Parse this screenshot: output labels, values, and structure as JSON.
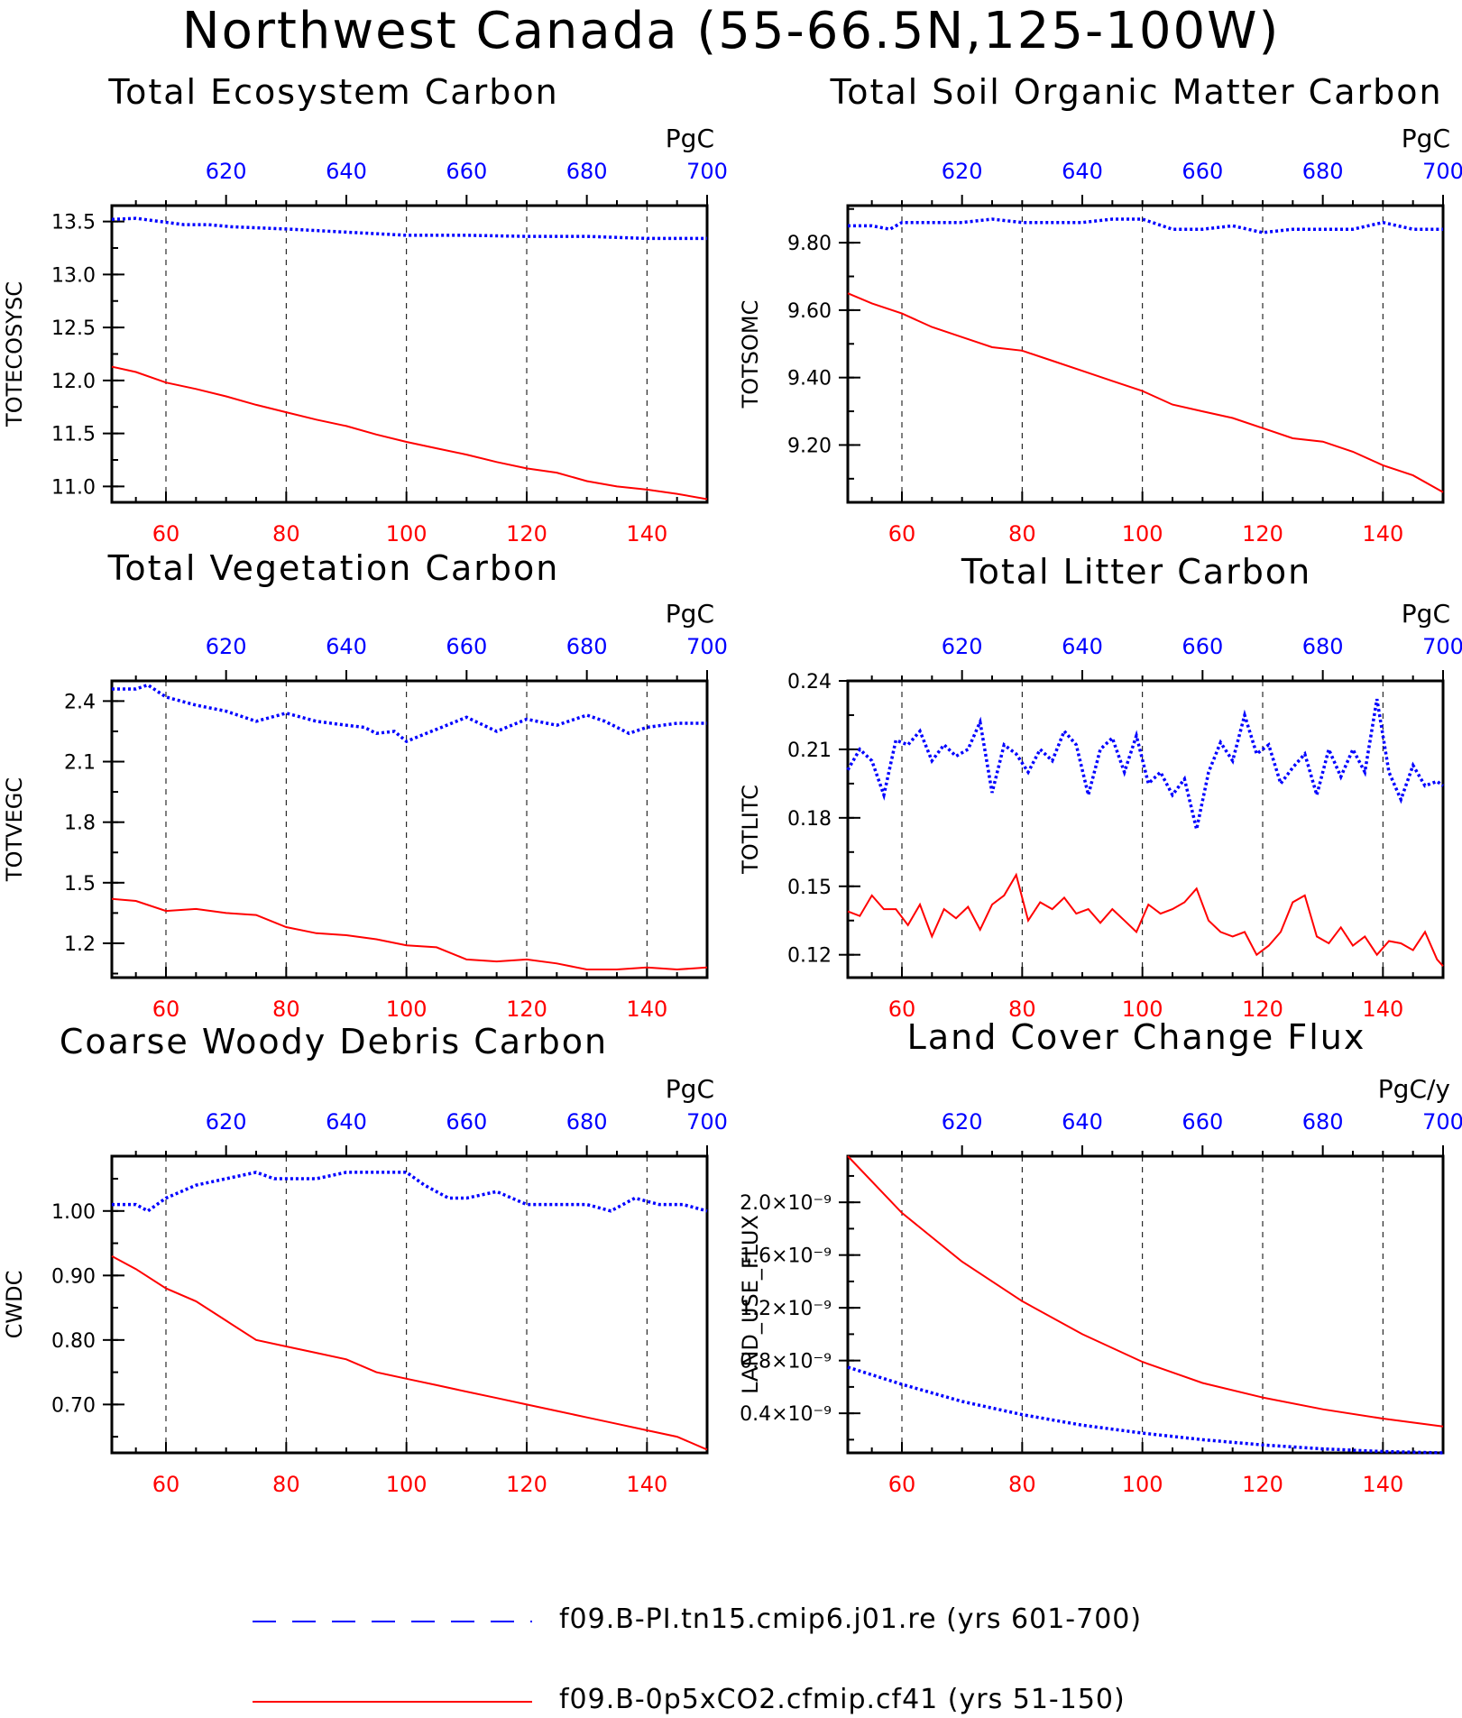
{
  "title": "Northwest Canada (55-66.5N,125-100W)",
  "colors": {
    "ctrl": "#0000ff",
    "exp": "#ff0000"
  },
  "legend": [
    {
      "label": "f09.B-PI.tn15.cmip6.j01.re (yrs 601-700)",
      "color": "#0000ff",
      "style": "dashed"
    },
    {
      "label": "f09.B-0p5xCO2.cfmip.cf41 (yrs 51-150)",
      "color": "#ff0000",
      "style": "solid"
    }
  ],
  "chart_data": [
    {
      "type": "line",
      "title": "Total Ecosystem Carbon",
      "ylabel": "TOTECOSYSC",
      "units": "PgC",
      "ylim": [
        10.85,
        13.65
      ],
      "yticks": [
        11.0,
        11.5,
        12.0,
        12.5,
        13.0,
        13.5
      ],
      "ytick_labels": [
        "11.0",
        "11.5",
        "12.0",
        "12.5",
        "13.0",
        "13.5"
      ],
      "xlim_bottom": [
        51,
        150
      ],
      "xticks_bottom": [
        "60",
        "80",
        "100",
        "120",
        "140"
      ],
      "xlim_top": [
        601,
        700
      ],
      "xticks_top": [
        "620",
        "640",
        "660",
        "680",
        "700"
      ],
      "series": [
        {
          "color": "#0000ff",
          "style": "dotted",
          "x": [
            601,
            605,
            609,
            613,
            617,
            621,
            630,
            640,
            650,
            660,
            670,
            680,
            690,
            700
          ],
          "y": [
            13.52,
            13.53,
            13.5,
            13.47,
            13.47,
            13.45,
            13.43,
            13.4,
            13.37,
            13.37,
            13.36,
            13.36,
            13.34,
            13.34
          ]
        },
        {
          "color": "#ff0000",
          "style": "solid",
          "x": [
            51,
            55,
            60,
            65,
            70,
            75,
            80,
            85,
            90,
            95,
            100,
            105,
            110,
            115,
            120,
            125,
            130,
            135,
            140,
            145,
            150
          ],
          "y": [
            12.13,
            12.08,
            11.98,
            11.92,
            11.85,
            11.77,
            11.7,
            11.63,
            11.57,
            11.49,
            11.42,
            11.36,
            11.3,
            11.23,
            11.17,
            11.13,
            11.05,
            11.0,
            10.97,
            10.93,
            10.88
          ]
        }
      ]
    },
    {
      "type": "line",
      "title": "Total Soil Organic Matter Carbon",
      "ylabel": "TOTSOMC",
      "units": "PgC",
      "ylim": [
        9.03,
        9.91
      ],
      "yticks": [
        9.2,
        9.4,
        9.6,
        9.8
      ],
      "ytick_labels": [
        "9.20",
        "9.40",
        "9.60",
        "9.80"
      ],
      "xlim_bottom": [
        51,
        150
      ],
      "xticks_bottom": [
        "60",
        "80",
        "100",
        "120",
        "140"
      ],
      "xlim_top": [
        601,
        700
      ],
      "xticks_top": [
        "620",
        "640",
        "660",
        "680",
        "700"
      ],
      "series": [
        {
          "color": "#0000ff",
          "style": "dotted",
          "x": [
            601,
            605,
            608,
            610,
            615,
            620,
            625,
            630,
            635,
            640,
            645,
            650,
            655,
            660,
            665,
            670,
            675,
            680,
            685,
            690,
            695,
            700
          ],
          "y": [
            9.85,
            9.85,
            9.84,
            9.86,
            9.86,
            9.86,
            9.87,
            9.86,
            9.86,
            9.86,
            9.87,
            9.87,
            9.84,
            9.84,
            9.85,
            9.83,
            9.84,
            9.84,
            9.84,
            9.86,
            9.84,
            9.84
          ]
        },
        {
          "color": "#ff0000",
          "style": "solid",
          "x": [
            51,
            55,
            60,
            65,
            70,
            75,
            80,
            85,
            90,
            95,
            100,
            105,
            110,
            115,
            120,
            125,
            130,
            135,
            140,
            145,
            150
          ],
          "y": [
            9.65,
            9.62,
            9.59,
            9.55,
            9.52,
            9.49,
            9.48,
            9.45,
            9.42,
            9.39,
            9.36,
            9.32,
            9.3,
            9.28,
            9.25,
            9.22,
            9.21,
            9.18,
            9.14,
            9.11,
            9.06
          ]
        }
      ]
    },
    {
      "type": "line",
      "title": "Total Vegetation Carbon",
      "ylabel": "TOTVEGC",
      "units": "PgC",
      "ylim": [
        1.03,
        2.5
      ],
      "yticks": [
        1.2,
        1.5,
        1.8,
        2.1,
        2.4
      ],
      "ytick_labels": [
        "1.2",
        "1.5",
        "1.8",
        "2.1",
        "2.4"
      ],
      "xlim_bottom": [
        51,
        150
      ],
      "xticks_bottom": [
        "60",
        "80",
        "100",
        "120",
        "140"
      ],
      "xlim_top": [
        601,
        700
      ],
      "xticks_top": [
        "620",
        "640",
        "660",
        "680",
        "700"
      ],
      "series": [
        {
          "color": "#0000ff",
          "style": "dotted",
          "x": [
            601,
            605,
            607,
            610,
            615,
            620,
            625,
            630,
            635,
            640,
            643,
            645,
            648,
            650,
            655,
            660,
            665,
            670,
            675,
            680,
            683,
            687,
            690,
            695,
            700
          ],
          "y": [
            2.46,
            2.46,
            2.48,
            2.42,
            2.38,
            2.35,
            2.3,
            2.34,
            2.3,
            2.28,
            2.27,
            2.24,
            2.25,
            2.2,
            2.26,
            2.32,
            2.25,
            2.31,
            2.28,
            2.33,
            2.3,
            2.24,
            2.27,
            2.29,
            2.29
          ]
        },
        {
          "color": "#ff0000",
          "style": "solid",
          "x": [
            51,
            55,
            60,
            65,
            70,
            75,
            80,
            85,
            90,
            95,
            100,
            105,
            110,
            115,
            120,
            125,
            130,
            135,
            140,
            145,
            150
          ],
          "y": [
            1.42,
            1.41,
            1.36,
            1.37,
            1.35,
            1.34,
            1.28,
            1.25,
            1.24,
            1.22,
            1.19,
            1.18,
            1.12,
            1.11,
            1.12,
            1.1,
            1.07,
            1.07,
            1.08,
            1.07,
            1.08
          ]
        }
      ]
    },
    {
      "type": "line",
      "title": "Total Litter Carbon",
      "ylabel": "TOTLITC",
      "units": "PgC",
      "ylim": [
        0.11,
        0.24
      ],
      "yticks": [
        0.12,
        0.15,
        0.18,
        0.21,
        0.24
      ],
      "ytick_labels": [
        "0.12",
        "0.15",
        "0.18",
        "0.21",
        "0.24"
      ],
      "xlim_bottom": [
        51,
        150
      ],
      "xticks_bottom": [
        "60",
        "80",
        "100",
        "120",
        "140"
      ],
      "xlim_top": [
        601,
        700
      ],
      "xticks_top": [
        "620",
        "640",
        "660",
        "680",
        "700"
      ],
      "series": [
        {
          "color": "#0000ff",
          "style": "dotted",
          "x": [
            601,
            603,
            605,
            607,
            609,
            611,
            613,
            615,
            617,
            619,
            621,
            623,
            625,
            627,
            629,
            631,
            633,
            635,
            637,
            639,
            641,
            643,
            645,
            647,
            649,
            651,
            653,
            655,
            657,
            659,
            661,
            663,
            665,
            667,
            669,
            671,
            673,
            675,
            677,
            679,
            681,
            683,
            685,
            687,
            689,
            691,
            693,
            695,
            697,
            699,
            700
          ],
          "y": [
            0.201,
            0.21,
            0.205,
            0.19,
            0.214,
            0.212,
            0.218,
            0.205,
            0.212,
            0.207,
            0.21,
            0.222,
            0.191,
            0.212,
            0.208,
            0.2,
            0.21,
            0.205,
            0.218,
            0.212,
            0.19,
            0.21,
            0.215,
            0.2,
            0.216,
            0.195,
            0.2,
            0.19,
            0.197,
            0.175,
            0.2,
            0.213,
            0.205,
            0.225,
            0.208,
            0.212,
            0.195,
            0.202,
            0.208,
            0.19,
            0.21,
            0.198,
            0.21,
            0.2,
            0.232,
            0.2,
            0.188,
            0.203,
            0.194,
            0.196,
            0.194
          ]
        },
        {
          "color": "#ff0000",
          "style": "solid",
          "x": [
            51,
            53,
            55,
            57,
            59,
            61,
            63,
            65,
            67,
            69,
            71,
            73,
            75,
            77,
            79,
            81,
            83,
            85,
            87,
            89,
            91,
            93,
            95,
            97,
            99,
            101,
            103,
            105,
            107,
            109,
            111,
            113,
            115,
            117,
            119,
            121,
            123,
            125,
            127,
            129,
            131,
            133,
            135,
            137,
            139,
            141,
            143,
            145,
            147,
            149,
            150
          ],
          "y": [
            0.139,
            0.137,
            0.146,
            0.14,
            0.14,
            0.133,
            0.142,
            0.128,
            0.14,
            0.136,
            0.141,
            0.131,
            0.142,
            0.146,
            0.155,
            0.135,
            0.143,
            0.14,
            0.145,
            0.138,
            0.14,
            0.134,
            0.14,
            0.135,
            0.13,
            0.142,
            0.138,
            0.14,
            0.143,
            0.149,
            0.135,
            0.13,
            0.128,
            0.13,
            0.12,
            0.124,
            0.13,
            0.143,
            0.146,
            0.128,
            0.125,
            0.132,
            0.124,
            0.128,
            0.12,
            0.126,
            0.125,
            0.122,
            0.13,
            0.118,
            0.115
          ]
        }
      ]
    },
    {
      "type": "line",
      "title": "Coarse Woody Debris Carbon",
      "ylabel": "CWDC",
      "units": "PgC",
      "ylim": [
        0.625,
        1.085
      ],
      "yticks": [
        0.7,
        0.8,
        0.9,
        1.0
      ],
      "ytick_labels": [
        "0.70",
        "0.80",
        "0.90",
        "1.00"
      ],
      "xlim_bottom": [
        51,
        150
      ],
      "xticks_bottom": [
        "60",
        "80",
        "100",
        "120",
        "140"
      ],
      "xlim_top": [
        601,
        700
      ],
      "xticks_top": [
        "620",
        "640",
        "660",
        "680",
        "700"
      ],
      "series": [
        {
          "color": "#0000ff",
          "style": "dotted",
          "x": [
            601,
            605,
            607,
            610,
            615,
            620,
            625,
            628,
            630,
            635,
            640,
            645,
            650,
            653,
            657,
            660,
            665,
            670,
            675,
            680,
            684,
            688,
            692,
            696,
            700
          ],
          "y": [
            1.01,
            1.01,
            1.0,
            1.02,
            1.04,
            1.05,
            1.06,
            1.05,
            1.05,
            1.05,
            1.06,
            1.06,
            1.06,
            1.04,
            1.02,
            1.02,
            1.03,
            1.01,
            1.01,
            1.01,
            1.0,
            1.02,
            1.01,
            1.01,
            1.0
          ]
        },
        {
          "color": "#ff0000",
          "style": "solid",
          "x": [
            51,
            55,
            60,
            65,
            70,
            75,
            80,
            85,
            90,
            95,
            100,
            105,
            110,
            115,
            120,
            125,
            130,
            135,
            140,
            145,
            150
          ],
          "y": [
            0.93,
            0.91,
            0.88,
            0.86,
            0.83,
            0.8,
            0.79,
            0.78,
            0.77,
            0.75,
            0.74,
            0.73,
            0.72,
            0.71,
            0.7,
            0.69,
            0.68,
            0.67,
            0.66,
            0.65,
            0.63
          ]
        }
      ]
    },
    {
      "type": "line",
      "title": "Land Cover Change Flux",
      "ylabel": "LAND_USE_FLUX",
      "units": "PgC/y",
      "ylim": [
        1e-10,
        2.35e-09
      ],
      "yticks": [
        4e-10,
        8e-10,
        1.2e-09,
        1.6e-09,
        2e-09
      ],
      "ytick_labels": [
        "0.4×10⁻⁹",
        "0.8×10⁻⁹",
        "1.2×10⁻⁹",
        "1.6×10⁻⁹",
        "2.0×10⁻⁹"
      ],
      "xlim_bottom": [
        51,
        150
      ],
      "xticks_bottom": [
        "60",
        "80",
        "100",
        "120",
        "140"
      ],
      "xlim_top": [
        601,
        700
      ],
      "xticks_top": [
        "620",
        "640",
        "660",
        "680",
        "700"
      ],
      "series": [
        {
          "color": "#0000ff",
          "style": "dotted",
          "x": [
            601,
            610,
            620,
            630,
            640,
            650,
            660,
            670,
            680,
            690,
            700
          ],
          "y": [
            7.5e-10,
            6.2e-10,
            4.9e-10,
            3.9e-10,
            3.1e-10,
            2.5e-10,
            2e-10,
            1.6e-10,
            1.3e-10,
            1.1e-10,
            1e-10
          ]
        },
        {
          "color": "#ff0000",
          "style": "solid",
          "x": [
            51,
            60,
            70,
            80,
            90,
            100,
            110,
            120,
            130,
            140,
            150
          ],
          "y": [
            2.35e-09,
            1.92e-09,
            1.55e-09,
            1.25e-09,
            1e-09,
            7.9e-10,
            6.3e-10,
            5.2e-10,
            4.3e-10,
            3.6e-10,
            3e-10
          ]
        }
      ]
    }
  ]
}
